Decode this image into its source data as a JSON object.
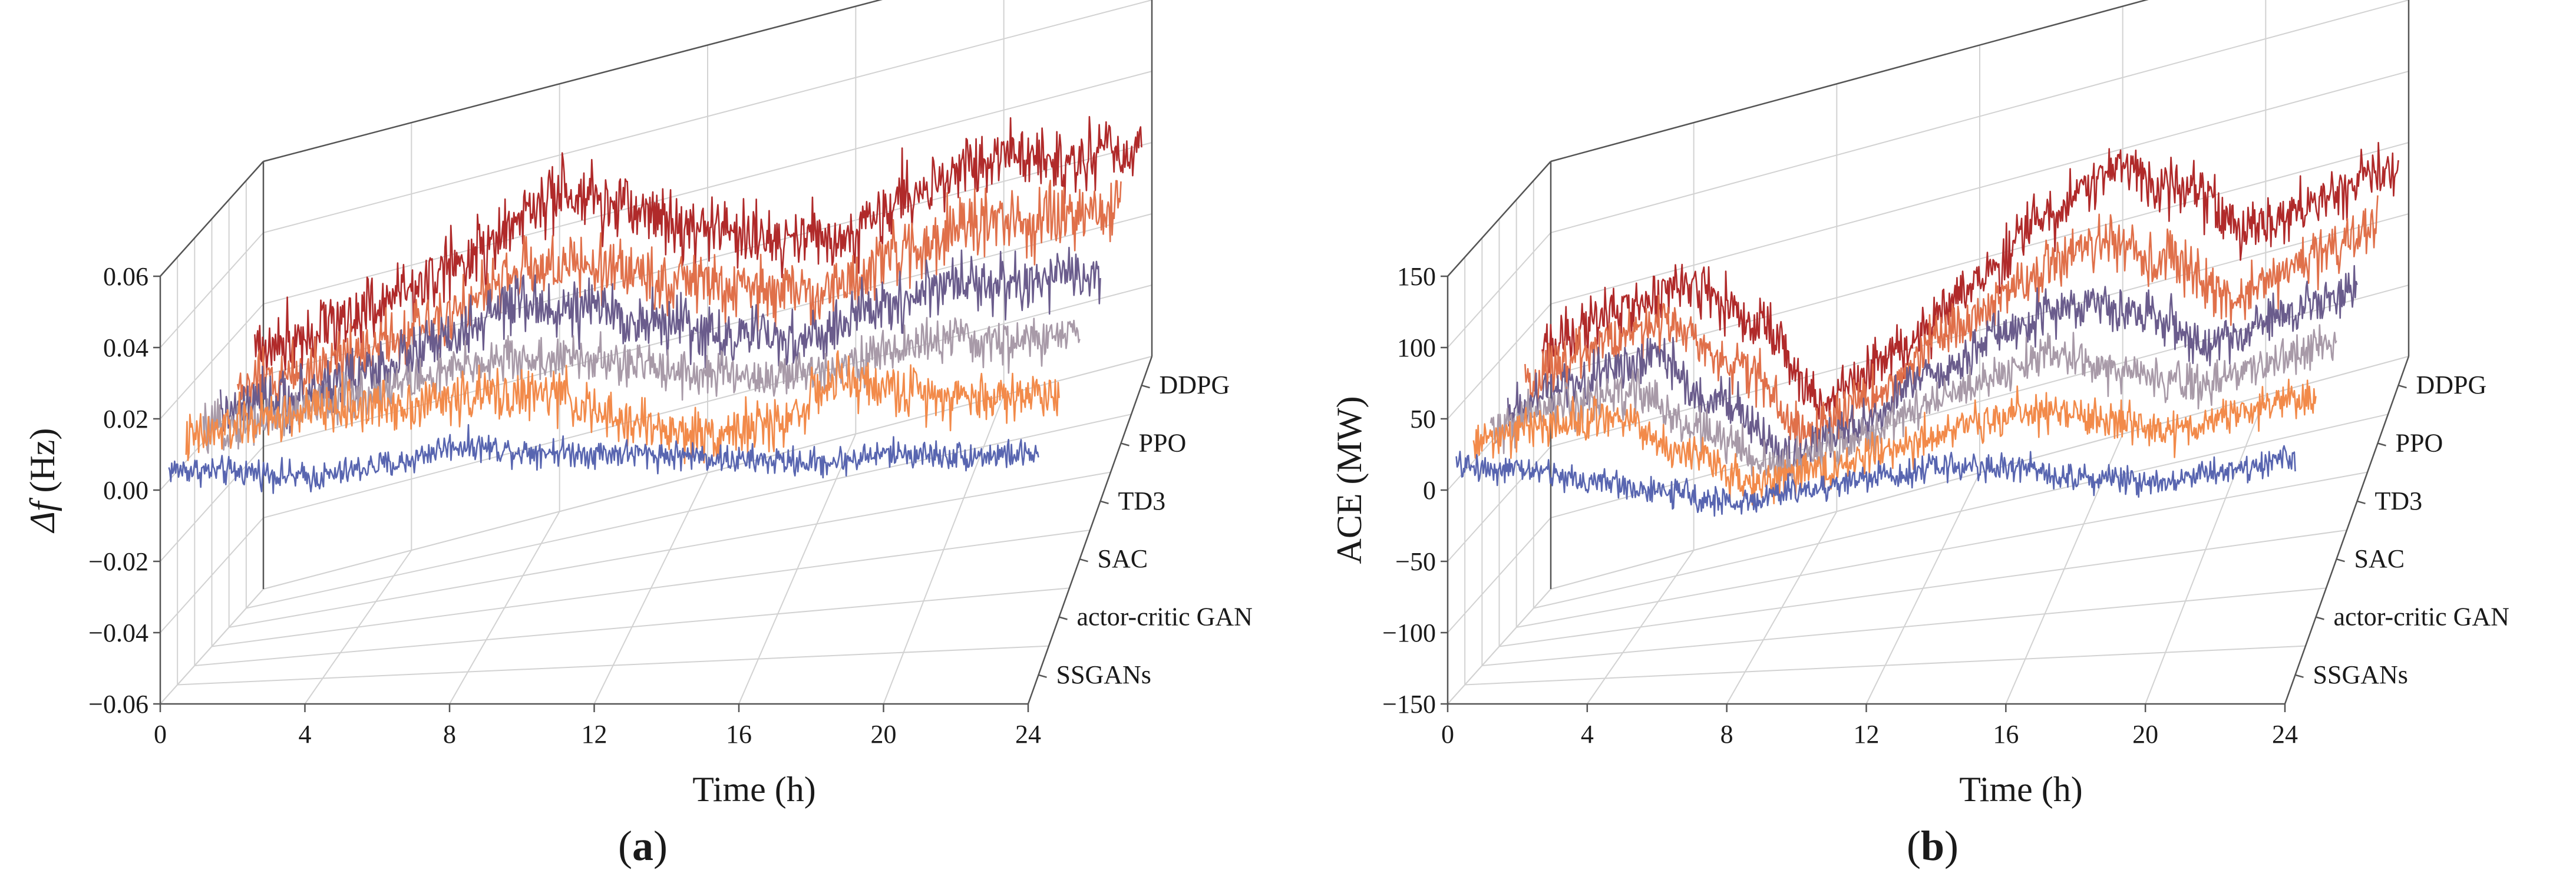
{
  "colors": {
    "SSGANs": "#5865b0",
    "actor-critic GAN": "#f28a4a",
    "SAC": "#a89aa8",
    "TD3": "#6a5c8c",
    "PPO": "#e0704a",
    "DDPG": "#b02a2a"
  },
  "chart_data": [
    {
      "panel_label": "(a)",
      "type": "line",
      "xlabel": "Time (h)",
      "ylabel_italic": "Δf",
      "ylabel_rest": " (Hz)",
      "xlim": [
        0,
        24
      ],
      "ylim": [
        -0.06,
        0.06
      ],
      "xticks": [
        "0",
        "4",
        "8",
        "12",
        "16",
        "20",
        "24"
      ],
      "yticks": [
        "−0.06",
        "−0.04",
        "−0.02",
        "0.00",
        "0.02",
        "0.04",
        "0.06"
      ],
      "series_order": [
        "SSGANs",
        "actor-critic GAN",
        "SAC",
        "TD3",
        "PPO",
        "DDPG"
      ],
      "series": [
        {
          "name": "SSGANs",
          "x": [
            0,
            2,
            4,
            6,
            8,
            10,
            12,
            14,
            16,
            18,
            20,
            22,
            24
          ],
          "values": [
            0.003,
            0.002,
            0.0,
            0.003,
            0.008,
            0.006,
            0.005,
            0.004,
            0.002,
            0.001,
            0.003,
            0.002,
            0.002
          ],
          "noise": 0.0025
        },
        {
          "name": "actor-critic GAN",
          "x": [
            0,
            2,
            4,
            6,
            8,
            10,
            12,
            14,
            16,
            18,
            20,
            22,
            24
          ],
          "values": [
            0.006,
            0.01,
            0.012,
            0.012,
            0.013,
            0.012,
            0.003,
            -0.002,
            -0.001,
            0.01,
            0.006,
            0.003,
            0.003
          ],
          "noise": 0.0045
        },
        {
          "name": "SAC",
          "x": [
            0,
            2,
            4,
            6,
            8,
            10,
            12,
            14,
            16,
            18,
            20,
            22,
            24
          ],
          "values": [
            0.003,
            0.005,
            0.008,
            0.011,
            0.014,
            0.012,
            0.008,
            0.003,
            0.0,
            0.003,
            0.006,
            0.003,
            0.003
          ],
          "noise": 0.004
        },
        {
          "name": "TD3",
          "x": [
            0,
            2,
            4,
            6,
            8,
            10,
            12,
            14,
            16,
            18,
            20,
            22,
            24
          ],
          "values": [
            0.002,
            0.004,
            0.008,
            0.013,
            0.02,
            0.016,
            0.009,
            0.002,
            -0.002,
            0.004,
            0.008,
            0.004,
            0.004
          ],
          "noise": 0.005
        },
        {
          "name": "PPO",
          "x": [
            0,
            2,
            4,
            6,
            8,
            10,
            12,
            14,
            16,
            18,
            20,
            22,
            24
          ],
          "values": [
            0.004,
            0.006,
            0.01,
            0.015,
            0.022,
            0.018,
            0.01,
            0.003,
            -0.001,
            0.005,
            0.01,
            0.006,
            0.006
          ],
          "noise": 0.0055
        },
        {
          "name": "DDPG",
          "x": [
            0,
            2,
            4,
            6,
            8,
            10,
            12,
            14,
            16,
            18,
            20,
            22,
            24
          ],
          "values": [
            0.01,
            0.012,
            0.016,
            0.022,
            0.032,
            0.025,
            0.014,
            0.006,
            0.002,
            0.01,
            0.014,
            0.008,
            0.008
          ],
          "noise": 0.006
        }
      ]
    },
    {
      "panel_label": "(b)",
      "type": "line",
      "xlabel": "Time (h)",
      "ylabel_italic": "",
      "ylabel_rest": "ACE (MW)",
      "xlim": [
        0,
        24
      ],
      "ylim": [
        -150,
        150
      ],
      "xticks": [
        "0",
        "4",
        "8",
        "12",
        "16",
        "20",
        "24"
      ],
      "yticks": [
        "−150",
        "−100",
        "−50",
        "0",
        "50",
        "100",
        "150"
      ],
      "series_order": [
        "SSGANs",
        "actor-critic GAN",
        "SAC",
        "TD3",
        "PPO",
        "DDPG"
      ],
      "series": [
        {
          "name": "SSGANs",
          "x": [
            0,
            2,
            4,
            6,
            8,
            10,
            12,
            14,
            16,
            18,
            20,
            22,
            24
          ],
          "values": [
            10,
            6,
            -3,
            -12,
            -20,
            -12,
            -4,
            2,
            0,
            -8,
            -12,
            -5,
            2
          ],
          "noise": 6
        },
        {
          "name": "actor-critic GAN",
          "x": [
            0,
            2,
            4,
            6,
            8,
            10,
            12,
            14,
            16,
            18,
            20,
            22,
            24
          ],
          "values": [
            15,
            22,
            24,
            -5,
            -28,
            -22,
            -10,
            0,
            10,
            -2,
            -12,
            -2,
            4
          ],
          "noise": 9
        },
        {
          "name": "SAC",
          "x": [
            0,
            2,
            4,
            6,
            8,
            10,
            12,
            14,
            16,
            18,
            20,
            22,
            24
          ],
          "values": [
            10,
            20,
            24,
            -10,
            -40,
            -30,
            -12,
            5,
            15,
            0,
            -18,
            -8,
            2
          ],
          "noise": 9
        },
        {
          "name": "TD3",
          "x": [
            0,
            2,
            4,
            6,
            8,
            10,
            12,
            14,
            16,
            18,
            20,
            22,
            24
          ],
          "values": [
            10,
            22,
            30,
            -10,
            -55,
            -40,
            -12,
            8,
            22,
            5,
            -25,
            -10,
            0
          ],
          "noise": 10
        },
        {
          "name": "PPO",
          "x": [
            0,
            2,
            4,
            6,
            8,
            10,
            12,
            14,
            16,
            18,
            20,
            22,
            24
          ],
          "values": [
            15,
            30,
            36,
            -5,
            -60,
            -42,
            -10,
            15,
            32,
            10,
            -25,
            -12,
            4
          ],
          "noise": 11
        },
        {
          "name": "DDPG",
          "x": [
            0,
            2,
            4,
            6,
            8,
            10,
            12,
            14,
            16,
            18,
            20,
            22,
            24
          ],
          "values": [
            25,
            40,
            45,
            5,
            -60,
            -38,
            -5,
            28,
            50,
            25,
            -15,
            -5,
            5
          ],
          "noise": 12
        }
      ]
    }
  ]
}
